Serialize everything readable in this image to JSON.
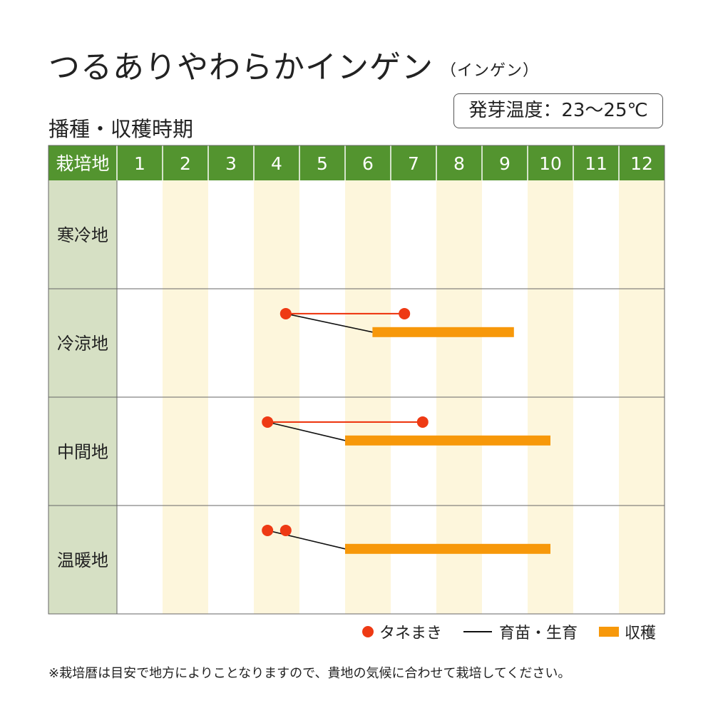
{
  "title": "つるありやわらかインゲン",
  "subtitle": "（インゲン）",
  "section_label": "播種・収穫時期",
  "temperature_note": "発芽温度：23〜25℃",
  "legend": {
    "sowing": "タネまき",
    "growing": "育苗・生育",
    "harvest": "収穫"
  },
  "footnote": "※栽培暦は目安で地方によりことなりますので、貴地の気候に合わせて栽培してください。",
  "colors": {
    "header_green": "#53942f",
    "region_column": "#d6e0c4",
    "stripe": "#fdf6dc",
    "sowing": "#ee3a14",
    "growing": "#111111",
    "harvest": "#f7980a"
  },
  "chart_data": {
    "type": "gantt",
    "header_label": "栽培地",
    "months": [
      "1",
      "2",
      "3",
      "4",
      "5",
      "6",
      "7",
      "8",
      "9",
      "10",
      "11",
      "12"
    ],
    "rows": [
      {
        "region": "寒冷地",
        "sowing": [],
        "harvest": null
      },
      {
        "region": "冷涼地",
        "sowing": [
          4.2,
          6.8
        ],
        "harvest": [
          6.1,
          9.2
        ]
      },
      {
        "region": "中間地",
        "sowing": [
          3.8,
          7.2
        ],
        "harvest": [
          5.5,
          10.0
        ]
      },
      {
        "region": "温暖地",
        "sowing": [
          3.8,
          4.2
        ],
        "harvest": [
          5.5,
          10.0
        ]
      }
    ]
  }
}
